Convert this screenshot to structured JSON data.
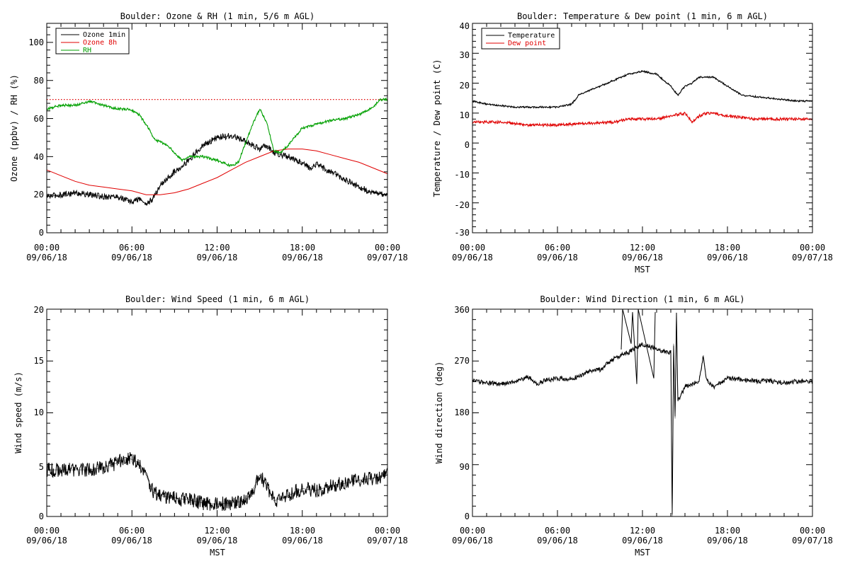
{
  "panels": [
    {
      "title": "Boulder: Ozone & RH (1 min, 5/6 m AGL)",
      "ylabel": "Ozone (ppbv) / RH (%)",
      "xlabel": "",
      "yticks": [
        "0",
        "20",
        "40",
        "60",
        "80",
        "100"
      ],
      "xticks": [
        [
          "00:00",
          "09/06/18"
        ],
        [
          "06:00",
          "09/06/18"
        ],
        [
          "12:00",
          "09/06/18"
        ],
        [
          "18:00",
          "09/06/18"
        ],
        [
          "00:00",
          "09/07/18"
        ]
      ],
      "legend": [
        {
          "name": "Ozone 1min",
          "color": "#000000"
        },
        {
          "name": "Ozone 8h",
          "color": "#e00000"
        },
        {
          "name": "RH",
          "color": "#00a000"
        }
      ]
    },
    {
      "title": "Boulder: Temperature & Dew point (1 min, 6 m AGL)",
      "ylabel": "Temperature / Dew point (C)",
      "xlabel": "MST",
      "yticks": [
        "-30",
        "-20",
        "-10",
        "0",
        "10",
        "20",
        "30",
        "40"
      ],
      "xticks": [
        [
          "00:00",
          "09/06/18"
        ],
        [
          "06:00",
          "09/06/18"
        ],
        [
          "12:00",
          "09/06/18"
        ],
        [
          "18:00",
          "09/06/18"
        ],
        [
          "00:00",
          "09/07/18"
        ]
      ],
      "legend": [
        {
          "name": "Temperature",
          "color": "#000000"
        },
        {
          "name": "Dew point",
          "color": "#e00000"
        }
      ]
    },
    {
      "title": "Boulder: Wind Speed (1 min, 6 m AGL)",
      "ylabel": "Wind speed (m/s)",
      "xlabel": "MST",
      "yticks": [
        "0",
        "5",
        "10",
        "15",
        "20"
      ],
      "xticks": [
        [
          "00:00",
          "09/06/18"
        ],
        [
          "06:00",
          "09/06/18"
        ],
        [
          "12:00",
          "09/06/18"
        ],
        [
          "18:00",
          "09/06/18"
        ],
        [
          "00:00",
          "09/07/18"
        ]
      ],
      "legend": []
    },
    {
      "title": "Boulder: Wind Direction (1 min, 6 m AGL)",
      "ylabel": "Wind direction (deg)",
      "xlabel": "MST",
      "yticks": [
        "0",
        "90",
        "180",
        "270",
        "360"
      ],
      "xticks": [
        [
          "00:00",
          "09/06/18"
        ],
        [
          "06:00",
          "09/06/18"
        ],
        [
          "12:00",
          "09/06/18"
        ],
        [
          "18:00",
          "09/06/18"
        ],
        [
          "00:00",
          "09/07/18"
        ]
      ],
      "legend": []
    }
  ],
  "chart_data": [
    {
      "type": "line",
      "title": "Boulder: Ozone & RH (1 min, 5/6 m AGL)",
      "ylabel": "Ozone (ppbv) / RH (%)",
      "xlabel": "",
      "x_unit": "hours since 00:00 09/06/18 MST",
      "xlim": [
        0,
        24
      ],
      "ylim": [
        0,
        110
      ],
      "legend_position": "top-left",
      "reference_line": {
        "y": 70,
        "style": "dotted",
        "color": "#e00000"
      },
      "series": [
        {
          "name": "Ozone 1min",
          "color": "#000000",
          "noise": 1.6,
          "x": [
            0,
            1,
            2,
            3,
            4,
            5,
            6,
            6.5,
            7,
            7.5,
            8,
            9,
            10,
            11,
            12,
            13,
            14,
            15,
            15.5,
            16,
            16.5,
            17,
            18,
            18.5,
            19,
            20,
            21,
            22,
            23,
            24
          ],
          "y": [
            19,
            20,
            21,
            20,
            19,
            19,
            16,
            18,
            15,
            18,
            25,
            32,
            38,
            46,
            50,
            51,
            48,
            44,
            46,
            42,
            41,
            40,
            37,
            34,
            36,
            32,
            28,
            24,
            21,
            20
          ]
        },
        {
          "name": "Ozone 8h",
          "color": "#e00000",
          "noise": 0,
          "x": [
            0,
            1,
            2,
            3,
            4,
            5,
            6,
            7,
            8,
            9,
            10,
            11,
            12,
            13,
            14,
            15,
            16,
            17,
            18,
            19,
            20,
            21,
            22,
            23,
            24
          ],
          "y": [
            33,
            30,
            27,
            25,
            24,
            23,
            22,
            20,
            20,
            21,
            23,
            26,
            29,
            33,
            37,
            40,
            43,
            44,
            44,
            43,
            41,
            39,
            37,
            34,
            31
          ]
        },
        {
          "name": "RH",
          "color": "#00a000",
          "noise": 0.7,
          "x": [
            0,
            1,
            2,
            3,
            4,
            5,
            5.8,
            6.5,
            7,
            7.6,
            8.5,
            9.5,
            10,
            11,
            12,
            13,
            13.5,
            14,
            14.5,
            15,
            15.5,
            16,
            16.5,
            17,
            18,
            19,
            20,
            21,
            22,
            23,
            23.5,
            24
          ],
          "y": [
            65,
            67,
            67,
            69,
            67,
            65,
            65,
            62,
            57,
            49,
            46,
            38,
            40,
            40,
            38,
            35,
            37,
            47,
            57,
            65,
            58,
            43,
            42,
            46,
            55,
            57,
            59,
            60,
            62,
            66,
            70,
            70
          ]
        }
      ]
    },
    {
      "type": "line",
      "title": "Boulder: Temperature & Dew point (1 min, 6 m AGL)",
      "ylabel": "Temperature / Dew point (C)",
      "xlabel": "MST",
      "x_unit": "hours since 00:00 09/06/18 MST",
      "xlim": [
        0,
        24
      ],
      "ylim": [
        -30,
        40
      ],
      "legend_position": "top-left",
      "series": [
        {
          "name": "Temperature",
          "color": "#000000",
          "noise": 0.3,
          "x": [
            0,
            1,
            2,
            3,
            4,
            5,
            6,
            7,
            7.5,
            8,
            9,
            10,
            11,
            12,
            13,
            14,
            14.5,
            15,
            15.5,
            16,
            17,
            18,
            19,
            20,
            21,
            22,
            23,
            24
          ],
          "y": [
            14,
            13,
            12.5,
            12,
            12,
            12,
            12,
            13,
            16,
            17,
            19,
            21,
            23,
            24,
            23,
            19,
            16,
            19,
            20,
            22,
            22,
            19,
            16,
            15.5,
            15,
            14.5,
            14,
            14
          ]
        },
        {
          "name": "Dew point",
          "color": "#e00000",
          "noise": 0.5,
          "x": [
            0,
            2,
            4,
            6,
            8,
            10,
            11,
            12,
            13,
            14,
            15,
            15.5,
            16,
            16.5,
            17,
            18,
            20,
            22,
            24
          ],
          "y": [
            7,
            7,
            6,
            6,
            6.5,
            7,
            8,
            8,
            8,
            9,
            10,
            7,
            9,
            10,
            10,
            9,
            8,
            8,
            8
          ]
        }
      ]
    },
    {
      "type": "line",
      "title": "Boulder: Wind Speed (1 min, 6 m AGL)",
      "ylabel": "Wind speed (m/s)",
      "xlabel": "MST",
      "x_unit": "hours since 00:00 09/06/18 MST",
      "xlim": [
        0,
        24
      ],
      "ylim": [
        0,
        20
      ],
      "series": [
        {
          "name": "",
          "color": "#000000",
          "noise": 0.7,
          "x": [
            0,
            1,
            2,
            3,
            4,
            5,
            5.5,
            6,
            6.5,
            7,
            7.5,
            8,
            9,
            10,
            11,
            12,
            13,
            14,
            14.5,
            15,
            15.5,
            16,
            17,
            18,
            19,
            20,
            21,
            22,
            23,
            24
          ],
          "y": [
            4.5,
            4.5,
            4.5,
            4.5,
            4.7,
            5.2,
            5.7,
            5.5,
            5.2,
            4,
            2.3,
            2,
            1.8,
            1.6,
            1.3,
            1.2,
            1.3,
            1.5,
            2.5,
            4,
            3,
            1.5,
            2,
            2.7,
            2.5,
            3,
            3.2,
            3.5,
            3.7,
            4
          ]
        }
      ]
    },
    {
      "type": "line",
      "title": "Boulder: Wind Direction (1 min, 6 m AGL)",
      "ylabel": "Wind direction (deg)",
      "xlabel": "MST",
      "x_unit": "hours since 00:00 09/06/18 MST",
      "xlim": [
        0,
        24
      ],
      "ylim": [
        0,
        360
      ],
      "series": [
        {
          "name": "",
          "color": "#000000",
          "noise": 4,
          "x": [
            0,
            1,
            2,
            3,
            4,
            4.5,
            5,
            6,
            7,
            8,
            9,
            9.5,
            10,
            11,
            12,
            13,
            14,
            14.1,
            14.2,
            14.3,
            14.4,
            14.5,
            15,
            16,
            16.3,
            16.5,
            17,
            18,
            19,
            20,
            21,
            22,
            23,
            24
          ],
          "y": [
            235,
            232,
            230,
            235,
            242,
            230,
            235,
            240,
            238,
            250,
            255,
            265,
            275,
            285,
            300,
            290,
            285,
            0,
            300,
            170,
            350,
            200,
            225,
            235,
            280,
            240,
            225,
            240,
            238,
            235,
            235,
            232,
            235,
            235
          ]
        },
        {
          "name": "",
          "color": "#000000",
          "noise": 0,
          "x": [
            10.5,
            10.6,
            11.2,
            11.3,
            11.6,
            11.7,
            12.8,
            12.9
          ],
          "y": [
            290,
            360,
            300,
            355,
            230,
            360,
            240,
            355
          ]
        }
      ]
    }
  ]
}
